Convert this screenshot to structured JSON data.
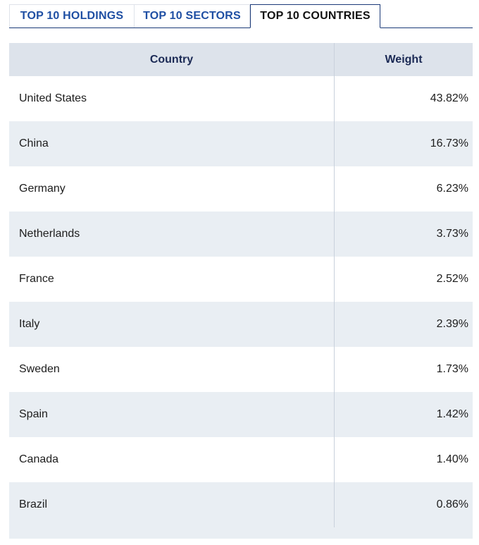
{
  "tabs": [
    {
      "label": "TOP 10 HOLDINGS",
      "active": false
    },
    {
      "label": "TOP 10 SECTORS",
      "active": false
    },
    {
      "label": "TOP 10 COUNTRIES",
      "active": true
    }
  ],
  "table": {
    "headers": {
      "country": "Country",
      "weight": "Weight"
    },
    "rows": [
      {
        "country": "United States",
        "weight": "43.82%"
      },
      {
        "country": "China",
        "weight": "16.73%"
      },
      {
        "country": "Germany",
        "weight": "6.23%"
      },
      {
        "country": "Netherlands",
        "weight": "3.73%"
      },
      {
        "country": "France",
        "weight": "2.52%"
      },
      {
        "country": "Italy",
        "weight": "2.39%"
      },
      {
        "country": "Sweden",
        "weight": "1.73%"
      },
      {
        "country": "Spain",
        "weight": "1.42%"
      },
      {
        "country": "Canada",
        "weight": "1.40%"
      },
      {
        "country": "Brazil",
        "weight": "0.86%"
      }
    ]
  },
  "colors": {
    "tab_text": "#1f4fa3",
    "tab_active_text": "#111111",
    "header_bg": "#dde3eb",
    "header_text": "#1b2a55",
    "stripe_bg": "#e9eef3"
  }
}
